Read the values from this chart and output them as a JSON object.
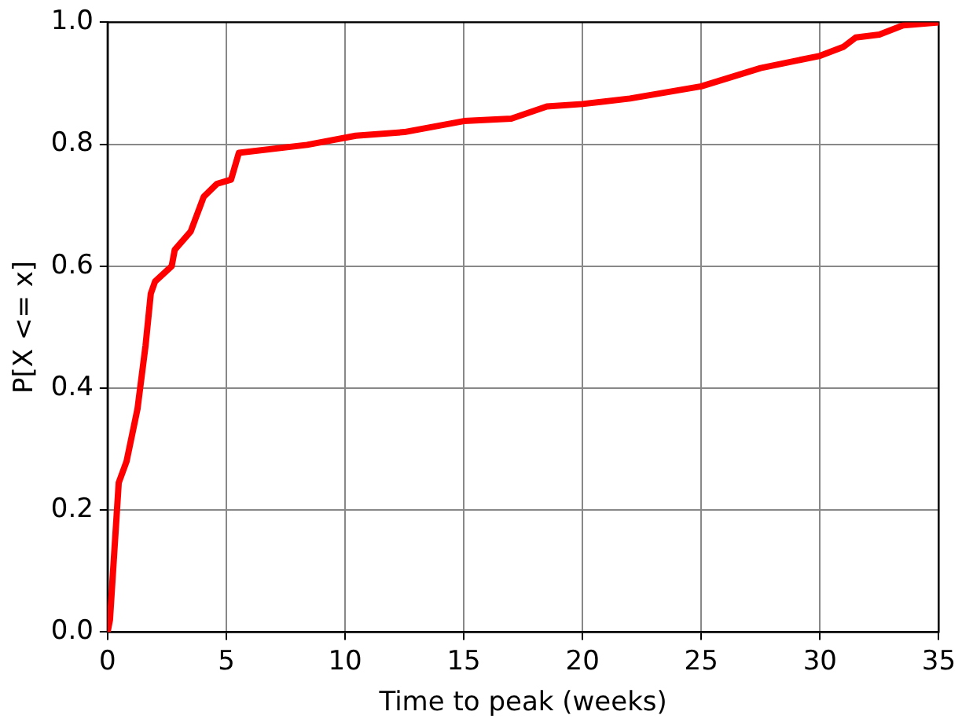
{
  "chart_data": {
    "type": "line",
    "xlabel": "Time to peak (weeks)",
    "ylabel": "P[X <= x]",
    "x": [
      0,
      0.1,
      0.47,
      0.8,
      1.26,
      1.6,
      1.82,
      2.0,
      2.7,
      2.83,
      3.5,
      4.05,
      4.6,
      5.2,
      5.53,
      8.4,
      10.45,
      12.5,
      15,
      17,
      18.5,
      20,
      22,
      25,
      27.5,
      30,
      31,
      31.5,
      32.5,
      33.5,
      35
    ],
    "series": [
      {
        "color": "#ff0000",
        "values": [
          0,
          0.02,
          0.245,
          0.28,
          0.366,
          0.47,
          0.555,
          0.575,
          0.6,
          0.627,
          0.657,
          0.714,
          0.735,
          0.742,
          0.786,
          0.799,
          0.814,
          0.82,
          0.838,
          0.842,
          0.862,
          0.866,
          0.875,
          0.895,
          0.925,
          0.945,
          0.96,
          0.975,
          0.98,
          0.995,
          1.0
        ]
      }
    ],
    "xlim": [
      0,
      35
    ],
    "xticks": [
      0,
      5,
      10,
      15,
      20,
      25,
      30,
      35
    ],
    "ylim": [
      0,
      1
    ],
    "yticks": [
      {
        "value": 0,
        "label": "0.0"
      },
      {
        "value": 0.2,
        "label": "0.2"
      },
      {
        "value": 0.4,
        "label": "0.4"
      },
      {
        "value": 0.6,
        "label": "0.6"
      },
      {
        "value": 0.8,
        "label": "0.8"
      },
      {
        "value": 1,
        "label": "1.0"
      }
    ],
    "grid": true,
    "line_style": "solid",
    "marker": "none",
    "legend": false
  }
}
